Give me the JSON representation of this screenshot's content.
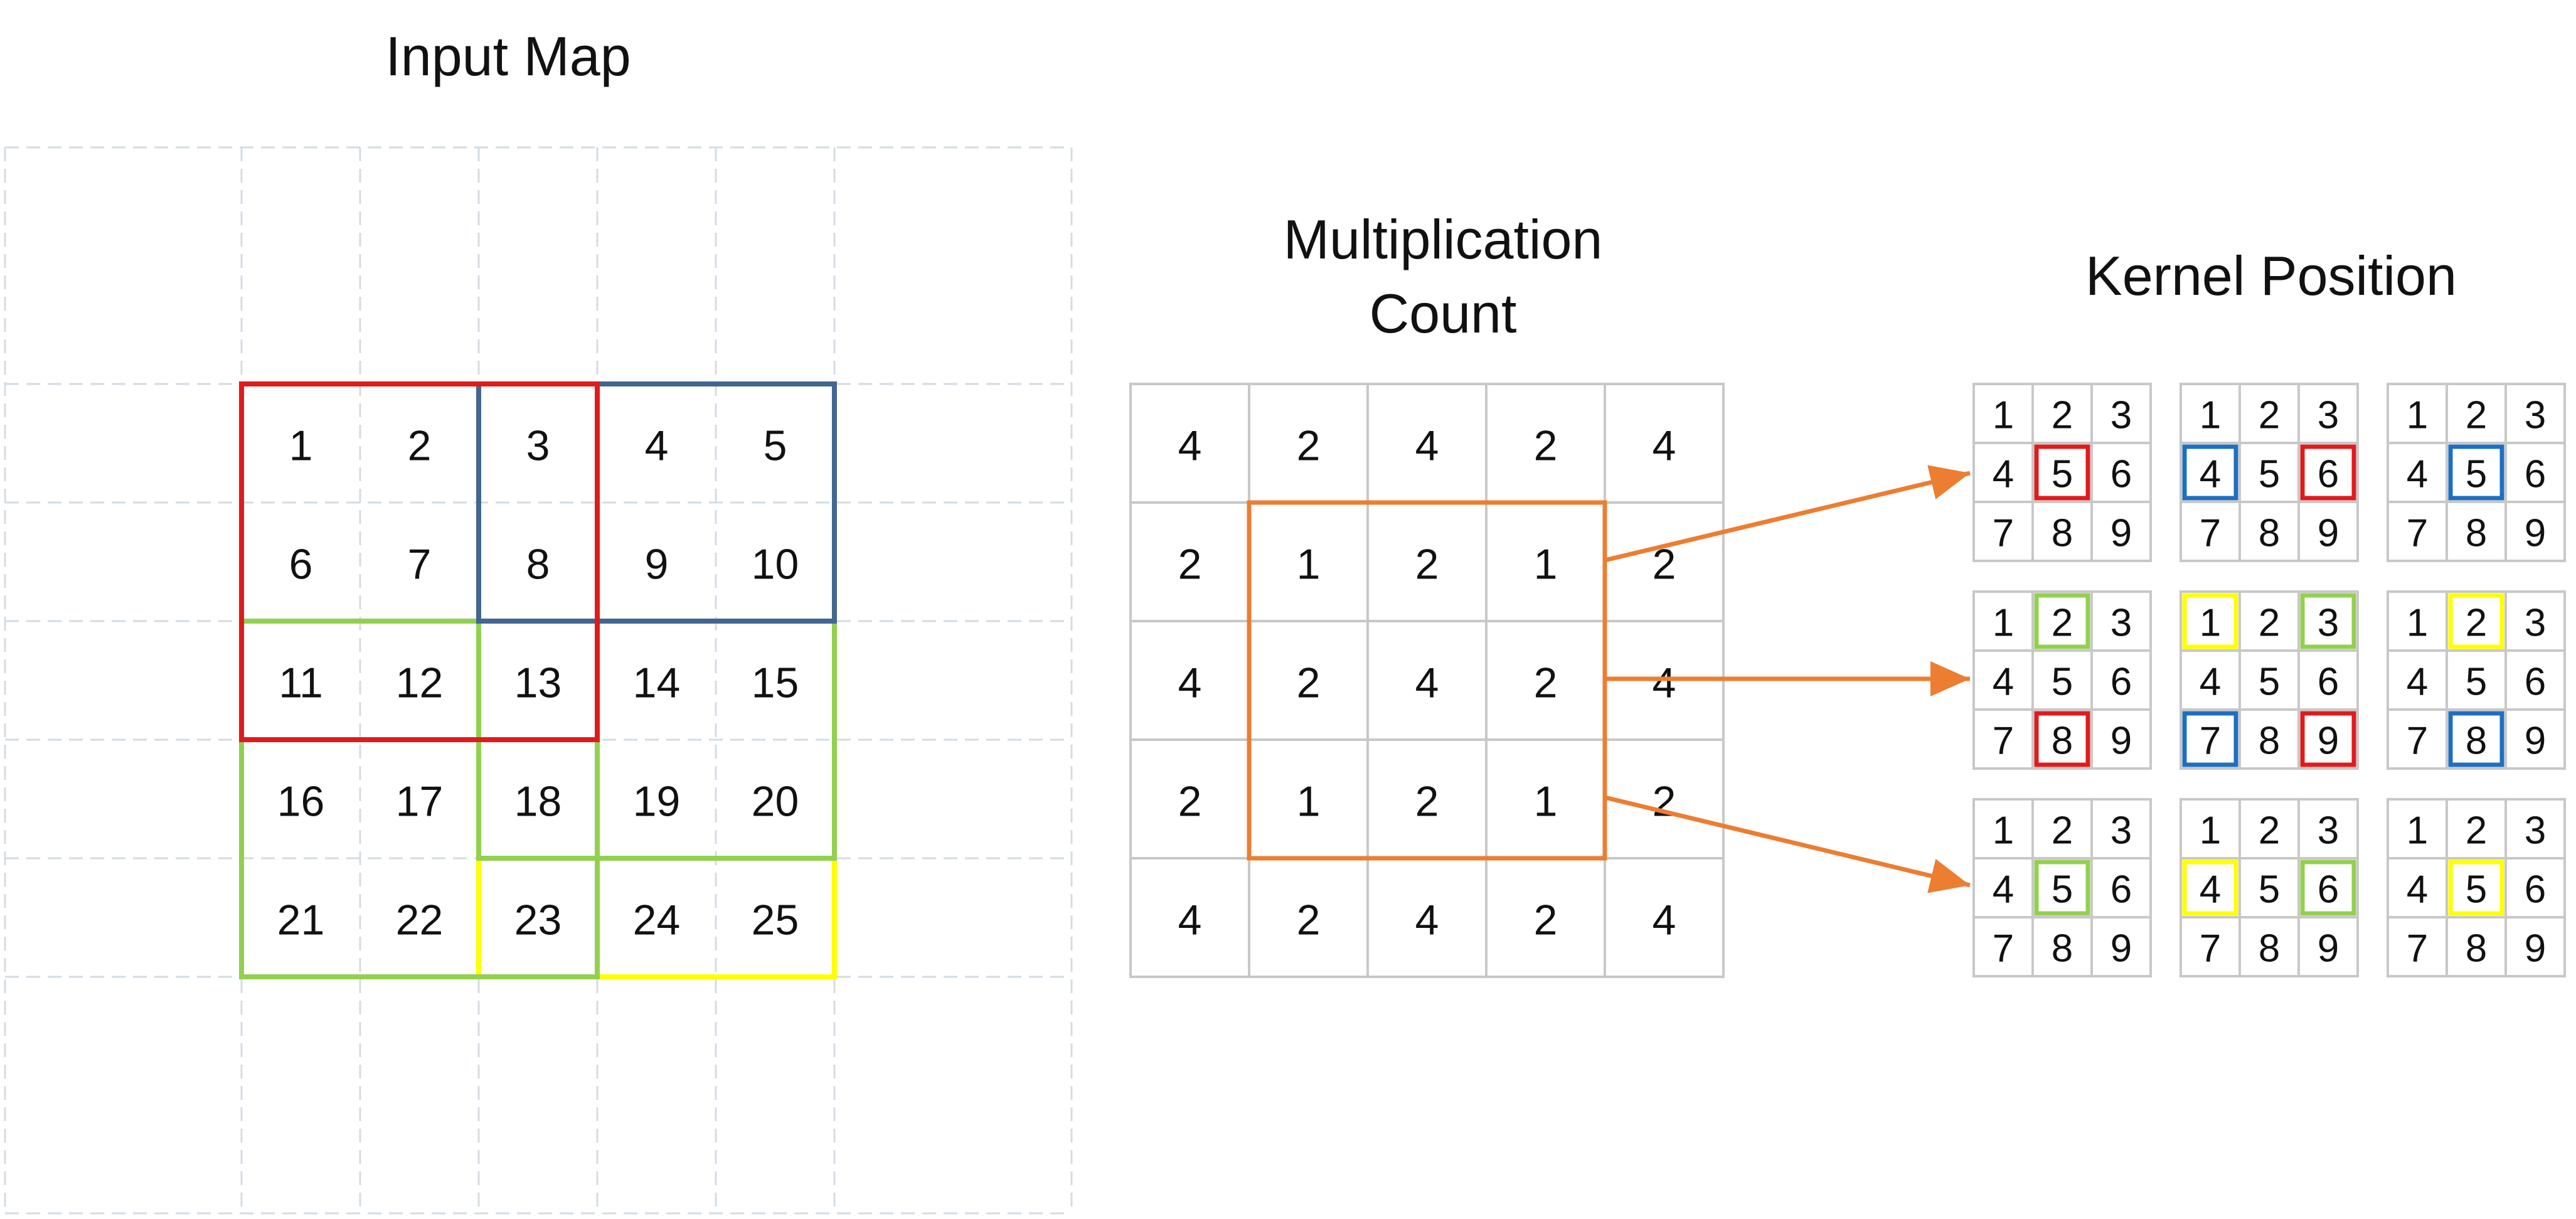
{
  "input_map": {
    "title": "Input Map",
    "rows": [
      [
        "1",
        "2",
        "3",
        "4",
        "5"
      ],
      [
        "6",
        "7",
        "8",
        "9",
        "10"
      ],
      [
        "11",
        "12",
        "13",
        "14",
        "15"
      ],
      [
        "16",
        "17",
        "18",
        "19",
        "20"
      ],
      [
        "21",
        "22",
        "23",
        "24",
        "25"
      ]
    ],
    "regions": [
      {
        "name": "red",
        "color": "#E01B1B",
        "row_start": 0,
        "row_end": 3,
        "col_start": 0,
        "col_end": 3
      },
      {
        "name": "blue",
        "color": "#41668F",
        "row_start": 0,
        "row_end": 2,
        "col_start": 2,
        "col_end": 5
      },
      {
        "name": "green",
        "color": "#92D050",
        "row_start": 2,
        "row_end": 5,
        "col_start": 0,
        "col_end": 3
      },
      {
        "name": "green-right",
        "color": "#92D050",
        "row_start": 2,
        "row_end": 4,
        "col_start": 2,
        "col_end": 5
      },
      {
        "name": "yellow",
        "color": "#FFFF00",
        "row_start": 2,
        "row_end": 5,
        "col_start": 2,
        "col_end": 5
      }
    ]
  },
  "multiplication_count": {
    "title_line1": "Multiplication",
    "title_line2": "Count",
    "rows": [
      [
        "4",
        "2",
        "4",
        "2",
        "4"
      ],
      [
        "2",
        "1",
        "2",
        "1",
        "2"
      ],
      [
        "4",
        "2",
        "4",
        "2",
        "4"
      ],
      [
        "2",
        "1",
        "2",
        "1",
        "2"
      ],
      [
        "4",
        "2",
        "4",
        "2",
        "4"
      ]
    ],
    "highlight": {
      "color": "#ED7D31",
      "row_start": 1,
      "row_end": 4,
      "col_start": 1,
      "col_end": 4
    }
  },
  "kernel_position": {
    "title": "Kernel Position",
    "cells": [
      "1",
      "2",
      "3",
      "4",
      "5",
      "6",
      "7",
      "8",
      "9"
    ],
    "kernels": [
      {
        "highlights": [
          {
            "index": 4,
            "color": "#E01B1B"
          }
        ]
      },
      {
        "highlights": [
          {
            "index": 3,
            "color": "#1F6FC0"
          },
          {
            "index": 5,
            "color": "#E01B1B"
          }
        ]
      },
      {
        "highlights": [
          {
            "index": 4,
            "color": "#1F6FC0"
          }
        ]
      },
      {
        "highlights": [
          {
            "index": 1,
            "color": "#92D050"
          },
          {
            "index": 7,
            "color": "#E01B1B"
          }
        ]
      },
      {
        "highlights": [
          {
            "index": 0,
            "color": "#FFFF00"
          },
          {
            "index": 2,
            "color": "#92D050"
          },
          {
            "index": 6,
            "color": "#1F6FC0"
          },
          {
            "index": 8,
            "color": "#E01B1B"
          }
        ]
      },
      {
        "highlights": [
          {
            "index": 1,
            "color": "#FFFF00"
          },
          {
            "index": 7,
            "color": "#1F6FC0"
          }
        ]
      },
      {
        "highlights": [
          {
            "index": 4,
            "color": "#92D050"
          }
        ]
      },
      {
        "highlights": [
          {
            "index": 3,
            "color": "#FFFF00"
          },
          {
            "index": 5,
            "color": "#92D050"
          }
        ]
      },
      {
        "highlights": [
          {
            "index": 4,
            "color": "#FFFF00"
          }
        ]
      }
    ]
  },
  "colors": {
    "arrow": "#ED7D31",
    "grid_line": "#C8C8C8",
    "padding_dash": "#D3DCE3"
  }
}
